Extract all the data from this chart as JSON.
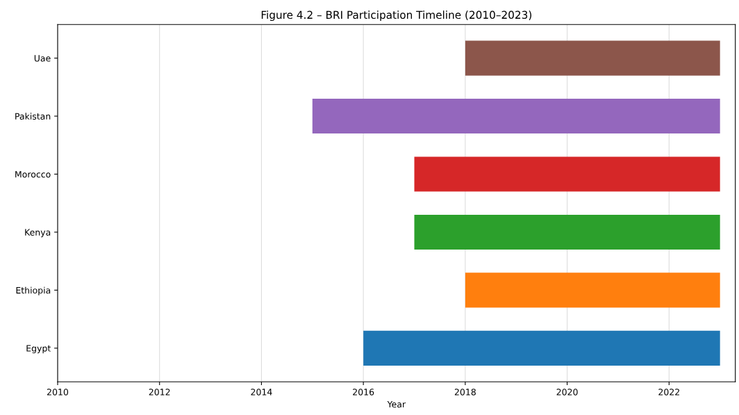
{
  "chart_data": {
    "type": "bar",
    "orientation": "horizontal",
    "title": "Figure 4.2 – BRI Participation Timeline (2010–2023)",
    "xlabel": "Year",
    "categories": [
      "Uae",
      "Pakistan",
      "Morocco",
      "Kenya",
      "Ethiopia",
      "Egypt"
    ],
    "base": [
      2018,
      2015,
      2017,
      2017,
      2018,
      2016
    ],
    "values": [
      5,
      8,
      6,
      6,
      5,
      7
    ],
    "colors": [
      "#8c564b",
      "#9467bd",
      "#d62728",
      "#2ca02c",
      "#ff7f0e",
      "#1f77b4"
    ],
    "xlim": [
      2010,
      2023.3
    ],
    "xticks": [
      2010,
      2012,
      2014,
      2016,
      2018,
      2020,
      2022
    ],
    "grid": "x"
  }
}
